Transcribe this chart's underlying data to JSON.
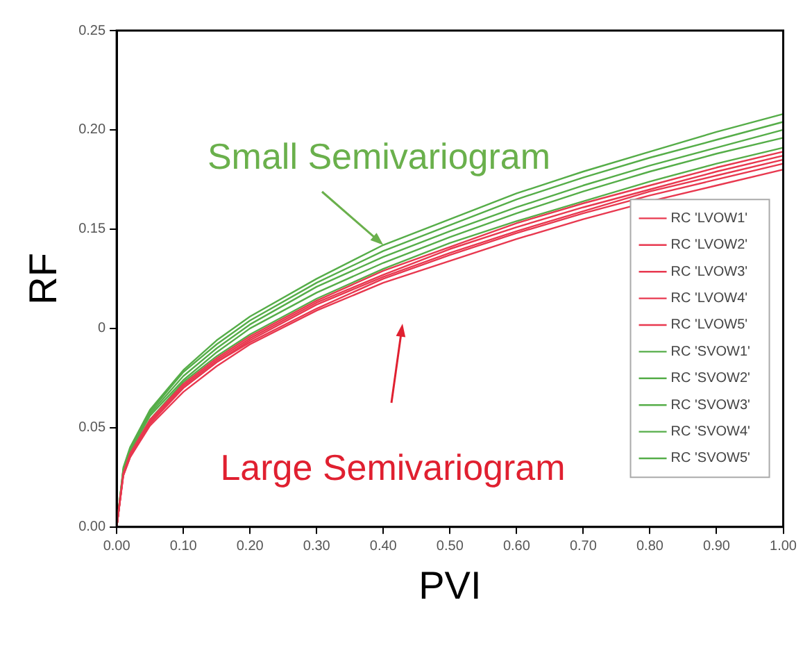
{
  "chart_data": {
    "type": "line",
    "xlabel": "PVI",
    "ylabel": "RF",
    "x": [
      0,
      0.01,
      0.02,
      0.05,
      0.1,
      0.15,
      0.2,
      0.3,
      0.4,
      0.5,
      0.6,
      0.7,
      0.8,
      0.9,
      1.0
    ],
    "xlim": [
      0,
      1
    ],
    "xticks": [
      {
        "value": 0,
        "label": "0.00"
      },
      {
        "value": 0.1,
        "label": "0.10"
      },
      {
        "value": 0.2,
        "label": "0.20"
      },
      {
        "value": 0.3,
        "label": "0.30"
      },
      {
        "value": 0.4,
        "label": "0.40"
      },
      {
        "value": 0.5,
        "label": "0.50"
      },
      {
        "value": 0.6,
        "label": "0.60"
      },
      {
        "value": 0.7,
        "label": "0.70"
      },
      {
        "value": 0.8,
        "label": "0.80"
      },
      {
        "value": 0.9,
        "label": "0.90"
      },
      {
        "value": 1,
        "label": "1.00"
      }
    ],
    "ylim": [
      0,
      0.25
    ],
    "yticks": [
      {
        "value": 0,
        "label": "0.00"
      },
      0.05,
      {
        "value": 0.1,
        "label": "0"
      },
      0.15,
      {
        "value": 0.2,
        "label": "0.20"
      },
      0.25
    ],
    "grid": false,
    "legend": "right",
    "marker": "none",
    "line_style": "solid",
    "series": [
      {
        "name": "RC 'LVOW1'",
        "color": "#e8384f",
        "values": [
          0,
          0.027,
          0.037,
          0.054,
          0.072,
          0.085,
          0.096,
          0.114,
          0.129,
          0.141,
          0.153,
          0.163,
          0.172,
          0.181,
          0.189
        ]
      },
      {
        "name": "RC 'LVOW2'",
        "color": "#e8384f",
        "values": [
          0,
          0.027,
          0.036,
          0.053,
          0.071,
          0.084,
          0.095,
          0.113,
          0.127,
          0.14,
          0.151,
          0.161,
          0.17,
          0.179,
          0.187
        ]
      },
      {
        "name": "RC 'LVOW3'",
        "color": "#e8384f",
        "values": [
          0,
          0.027,
          0.036,
          0.053,
          0.07,
          0.083,
          0.094,
          0.112,
          0.126,
          0.138,
          0.149,
          0.159,
          0.169,
          0.177,
          0.185
        ]
      },
      {
        "name": "RC 'LVOW4'",
        "color": "#e8384f",
        "values": [
          0,
          0.026,
          0.035,
          0.052,
          0.07,
          0.083,
          0.093,
          0.11,
          0.125,
          0.137,
          0.148,
          0.158,
          0.167,
          0.175,
          0.183
        ]
      },
      {
        "name": "RC 'LVOW5'",
        "color": "#e8384f",
        "values": [
          0,
          0.026,
          0.035,
          0.051,
          0.068,
          0.081,
          0.092,
          0.109,
          0.123,
          0.134,
          0.145,
          0.155,
          0.164,
          0.172,
          0.18
        ]
      },
      {
        "name": "RC 'SVOW1'",
        "color": "#55ad48",
        "values": [
          0,
          0.03,
          0.04,
          0.059,
          0.079,
          0.094,
          0.106,
          0.125,
          0.142,
          0.155,
          0.168,
          0.179,
          0.189,
          0.199,
          0.208
        ]
      },
      {
        "name": "RC 'SVOW2'",
        "color": "#55ad48",
        "values": [
          0,
          0.029,
          0.039,
          0.058,
          0.078,
          0.092,
          0.104,
          0.123,
          0.139,
          0.152,
          0.165,
          0.176,
          0.186,
          0.195,
          0.204
        ]
      },
      {
        "name": "RC 'SVOW3'",
        "color": "#55ad48",
        "values": [
          0,
          0.029,
          0.039,
          0.057,
          0.076,
          0.09,
          0.102,
          0.121,
          0.136,
          0.149,
          0.161,
          0.172,
          0.182,
          0.191,
          0.2
        ]
      },
      {
        "name": "RC 'SVOW4'",
        "color": "#55ad48",
        "values": [
          0,
          0.028,
          0.038,
          0.056,
          0.074,
          0.088,
          0.1,
          0.118,
          0.133,
          0.146,
          0.158,
          0.169,
          0.179,
          0.188,
          0.196
        ]
      },
      {
        "name": "RC 'SVOW5'",
        "color": "#55ad48",
        "values": [
          0,
          0.028,
          0.037,
          0.054,
          0.073,
          0.086,
          0.097,
          0.115,
          0.13,
          0.143,
          0.154,
          0.164,
          0.174,
          0.183,
          0.191
        ]
      }
    ],
    "annotations": [
      {
        "text": "Small Semivariogram",
        "x": 0.4,
        "y": 0.142
      },
      "Large Semivariogram"
    ]
  }
}
